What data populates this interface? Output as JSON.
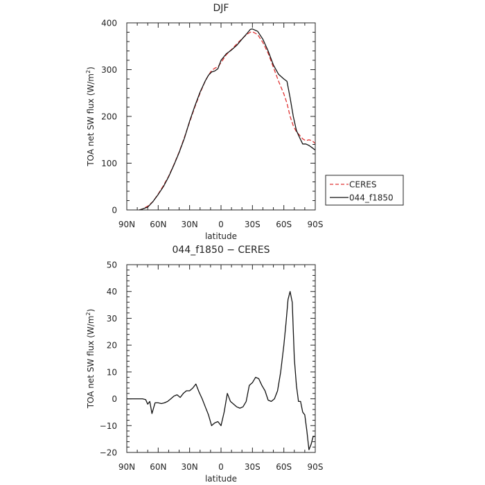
{
  "chart_data": [
    {
      "type": "line",
      "title": "DJF",
      "xlabel": "latitude",
      "ylabel": "TOA net SW flux (W/m",
      "ylabel_sup": "2",
      "ylabel_end": ")",
      "xlim": [
        90,
        -90
      ],
      "ylim": [
        0,
        400
      ],
      "x_ticks": [
        90,
        60,
        30,
        0,
        -30,
        -60,
        -90
      ],
      "x_tick_labels": [
        "90N",
        "60N",
        "30N",
        "0",
        "30S",
        "60S",
        "90S"
      ],
      "y_ticks": [
        0,
        100,
        200,
        300,
        400
      ],
      "y_tick_labels": [
        "0",
        "100",
        "200",
        "300",
        "400"
      ],
      "legend_position": "right-outside",
      "series": [
        {
          "name": "CERES",
          "style": "dashed",
          "color": "#e03030",
          "x": [
            78,
            75,
            70,
            65,
            60,
            55,
            50,
            45,
            40,
            35,
            30,
            25,
            20,
            15,
            12,
            9,
            6,
            3,
            0,
            -5,
            -10,
            -15,
            -20,
            -25,
            -28,
            -30,
            -35,
            -40,
            -45,
            -50,
            -55,
            -60,
            -63,
            -66,
            -69,
            -72,
            -75,
            -78,
            -81,
            -84,
            -87,
            -90
          ],
          "y": [
            0,
            2,
            8,
            18,
            34,
            52,
            72,
            97,
            124,
            155,
            188,
            220,
            250,
            276,
            288,
            298,
            303,
            306,
            315,
            332,
            343,
            355,
            366,
            376,
            380,
            381,
            375,
            358,
            335,
            305,
            275,
            248,
            228,
            200,
            180,
            167,
            160,
            152,
            148,
            150,
            148,
            142
          ]
        },
        {
          "name": "044_f1850",
          "style": "solid",
          "color": "#111111",
          "x": [
            78,
            75,
            70,
            65,
            60,
            55,
            50,
            45,
            40,
            35,
            30,
            25,
            20,
            15,
            12,
            9,
            6,
            3,
            0,
            -5,
            -10,
            -15,
            -20,
            -25,
            -28,
            -30,
            -35,
            -40,
            -45,
            -50,
            -55,
            -60,
            -63,
            -66,
            -69,
            -72,
            -75,
            -78,
            -81,
            -84,
            -87,
            -90
          ],
          "y": [
            0,
            2,
            6,
            18,
            33,
            50,
            71,
            96,
            123,
            153,
            190,
            222,
            252,
            276,
            288,
            295,
            297,
            302,
            320,
            334,
            342,
            352,
            365,
            378,
            386,
            387,
            382,
            365,
            340,
            310,
            290,
            280,
            275,
            240,
            200,
            170,
            155,
            141,
            141,
            138,
            133,
            128
          ]
        }
      ]
    },
    {
      "type": "line",
      "title": "044_f1850 − CERES",
      "xlabel": "latitude",
      "ylabel": "TOA net SW flux (W/m",
      "ylabel_sup": "2",
      "ylabel_end": ")",
      "xlim": [
        90,
        -90
      ],
      "ylim": [
        -20,
        50
      ],
      "x_ticks": [
        90,
        60,
        30,
        0,
        -30,
        -60,
        -90
      ],
      "x_tick_labels": [
        "90N",
        "60N",
        "30N",
        "0",
        "30S",
        "60S",
        "90S"
      ],
      "y_ticks": [
        -20,
        -10,
        0,
        10,
        20,
        30,
        40,
        50
      ],
      "y_tick_labels": [
        "−20",
        "−10",
        "0",
        "10",
        "20",
        "30",
        "40",
        "50"
      ],
      "series": [
        {
          "style": "solid",
          "color": "#111111",
          "x": [
            90,
            75,
            72,
            70,
            68,
            66,
            63,
            60,
            57,
            54,
            51,
            48,
            45,
            42,
            39,
            36,
            33,
            30,
            27,
            24,
            21,
            18,
            15,
            12,
            9,
            6,
            3,
            0,
            -3,
            -6,
            -9,
            -12,
            -15,
            -18,
            -21,
            -24,
            -27,
            -30,
            -33,
            -36,
            -39,
            -42,
            -45,
            -48,
            -51,
            -54,
            -57,
            -60,
            -62,
            -64,
            -66,
            -68,
            -70,
            -72,
            -74,
            -76,
            -78,
            -80,
            -82,
            -84,
            -86,
            -88,
            -90
          ],
          "y": [
            0,
            0,
            -0.3,
            -2,
            -1,
            -5.5,
            -1.5,
            -1.5,
            -1.8,
            -1.5,
            -1,
            0,
            1,
            1.5,
            0.5,
            2,
            3,
            3,
            4,
            5.5,
            2.5,
            0,
            -3,
            -6,
            -10,
            -9,
            -8.5,
            -10,
            -5,
            2,
            -1,
            -2,
            -3,
            -3.5,
            -3,
            -1,
            5,
            6,
            8,
            7.5,
            5,
            3,
            -0.5,
            -1,
            0,
            3,
            10,
            20,
            28,
            37,
            40,
            36,
            15,
            5,
            -1,
            -1,
            -5,
            -6,
            -12,
            -19,
            -17,
            -14,
            -14
          ]
        }
      ]
    }
  ]
}
